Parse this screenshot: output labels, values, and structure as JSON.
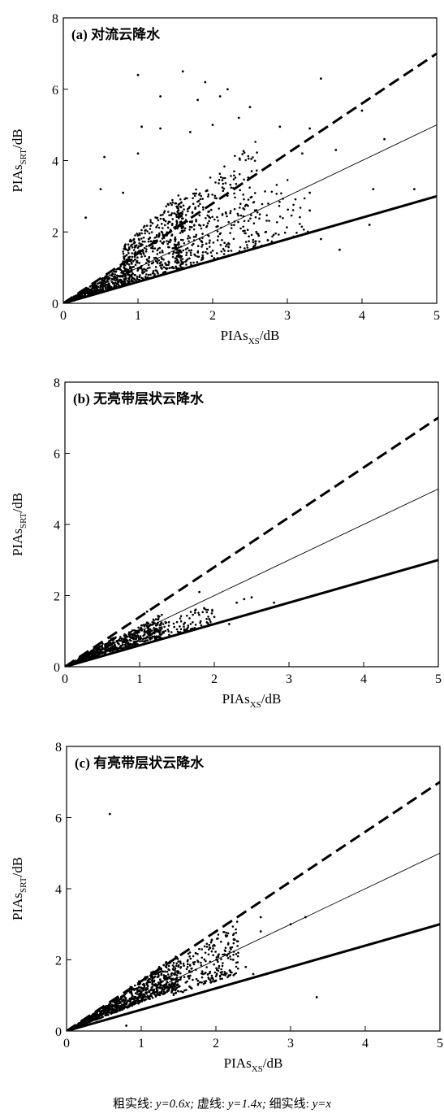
{
  "caption": {
    "thick_label": "粗实线:",
    "thick_eq": "y=0.6x;",
    "dashed_label": "虚线:",
    "dashed_eq": "y=1.4x;",
    "thin_label": "细实线:",
    "thin_eq": "y=x"
  },
  "chart_data": [
    {
      "type": "scatter",
      "title": "(a) 对流云降水",
      "xlabel": "PIAs_XS/dB",
      "ylabel": "PIAs_SRT/dB",
      "xlim": [
        0,
        5
      ],
      "ylim": [
        0,
        8
      ],
      "xticks": [
        0,
        1,
        2,
        3,
        4,
        5
      ],
      "yticks": [
        0,
        2,
        4,
        6,
        8
      ],
      "grid": false,
      "reference_lines": [
        {
          "slope": 0.6,
          "style": "thick-solid"
        },
        {
          "slope": 1.4,
          "style": "dashed"
        },
        {
          "slope": 1.0,
          "style": "thin-solid"
        }
      ],
      "outliers": [
        [
          1.0,
          6.4
        ],
        [
          1.6,
          6.5
        ],
        [
          1.9,
          6.2
        ],
        [
          2.2,
          6.0
        ],
        [
          3.45,
          6.3
        ],
        [
          1.3,
          5.8
        ],
        [
          2.1,
          5.8
        ],
        [
          1.8,
          5.7
        ],
        [
          2.5,
          5.5
        ],
        [
          0.55,
          4.1
        ],
        [
          1.05,
          4.95
        ],
        [
          1.3,
          4.9
        ],
        [
          2.0,
          5.0
        ],
        [
          2.35,
          5.2
        ],
        [
          2.9,
          4.95
        ],
        [
          3.3,
          4.9
        ],
        [
          1.7,
          4.8
        ],
        [
          1.0,
          4.2
        ],
        [
          3.2,
          4.2
        ],
        [
          3.65,
          4.3
        ],
        [
          4.3,
          4.6
        ],
        [
          4.0,
          5.4
        ],
        [
          0.3,
          2.4
        ],
        [
          0.5,
          3.2
        ],
        [
          0.8,
          3.1
        ],
        [
          4.15,
          3.2
        ],
        [
          4.1,
          2.2
        ],
        [
          3.7,
          1.5
        ],
        [
          4.7,
          3.2
        ],
        [
          3.3,
          3.1
        ],
        [
          3.3,
          2.6
        ],
        [
          3.45,
          1.8
        ]
      ],
      "clusters": [
        {
          "x": [
            0.05,
            0.8
          ],
          "spread": [
            0.6,
            1.35
          ],
          "n": 420,
          "p": 1.0
        },
        {
          "x": [
            0.8,
            1.6
          ],
          "spread": [
            0.6,
            2.0
          ],
          "n": 500,
          "p": 1.4
        },
        {
          "x": [
            1.5,
            2.6
          ],
          "spread": [
            0.6,
            1.8
          ],
          "n": 360,
          "p": 1.5
        },
        {
          "x": [
            2.5,
            3.3
          ],
          "spread": [
            0.6,
            1.2
          ],
          "n": 60,
          "p": 1.2
        }
      ]
    },
    {
      "type": "scatter",
      "title": "(b) 无亮带层状云降水",
      "xlabel": "PIAs_XS/dB",
      "ylabel": "PIAs_SRT/dB",
      "xlim": [
        0,
        5
      ],
      "ylim": [
        0,
        8
      ],
      "xticks": [
        0,
        1,
        2,
        3,
        4,
        5
      ],
      "yticks": [
        0,
        2,
        4,
        6,
        8
      ],
      "grid": false,
      "reference_lines": [
        {
          "slope": 0.6,
          "style": "thick-solid"
        },
        {
          "slope": 1.4,
          "style": "dashed"
        },
        {
          "slope": 1.0,
          "style": "thin-solid"
        }
      ],
      "outliers": [
        [
          1.8,
          2.1
        ],
        [
          2.4,
          1.9
        ],
        [
          2.3,
          1.8
        ],
        [
          2.5,
          1.95
        ],
        [
          2.8,
          1.8
        ],
        [
          2.2,
          1.2
        ],
        [
          2.0,
          1.4
        ],
        [
          1.6,
          1.05
        ],
        [
          1.1,
          1.55
        ]
      ],
      "clusters": [
        {
          "x": [
            0.05,
            0.7
          ],
          "spread": [
            0.7,
            1.28
          ],
          "n": 350,
          "p": 1.0
        },
        {
          "x": [
            0.7,
            1.3
          ],
          "spread": [
            0.65,
            1.15
          ],
          "n": 260,
          "p": 1.0
        },
        {
          "x": [
            1.2,
            2.0
          ],
          "spread": [
            0.6,
            0.95
          ],
          "n": 90,
          "p": 1.0
        }
      ]
    },
    {
      "type": "scatter",
      "title": "(c) 有亮带层状云降水",
      "xlabel": "PIAs_XS/dB",
      "ylabel": "PIAs_SRT/dB",
      "xlim": [
        0,
        5
      ],
      "ylim": [
        0,
        8
      ],
      "xticks": [
        0,
        1,
        2,
        3,
        4,
        5
      ],
      "yticks": [
        0,
        2,
        4,
        6,
        8
      ],
      "grid": false,
      "reference_lines": [
        {
          "slope": 0.6,
          "style": "thick-solid"
        },
        {
          "slope": 1.4,
          "style": "dashed"
        },
        {
          "slope": 1.0,
          "style": "thin-solid"
        }
      ],
      "outliers": [
        [
          0.58,
          6.1
        ],
        [
          2.6,
          3.2
        ],
        [
          2.6,
          2.8
        ],
        [
          3.0,
          3.0
        ],
        [
          3.2,
          3.2
        ],
        [
          3.35,
          0.95
        ],
        [
          2.2,
          2.3
        ],
        [
          2.4,
          1.8
        ],
        [
          2.5,
          1.6
        ],
        [
          0.8,
          0.15
        ]
      ],
      "clusters": [
        {
          "x": [
            0.05,
            0.8
          ],
          "spread": [
            0.8,
            1.35
          ],
          "n": 450,
          "p": 1.0
        },
        {
          "x": [
            0.8,
            1.5
          ],
          "spread": [
            0.8,
            1.45
          ],
          "n": 420,
          "p": 1.0
        },
        {
          "x": [
            1.4,
            2.3
          ],
          "spread": [
            0.7,
            1.35
          ],
          "n": 250,
          "p": 1.0
        }
      ]
    }
  ]
}
